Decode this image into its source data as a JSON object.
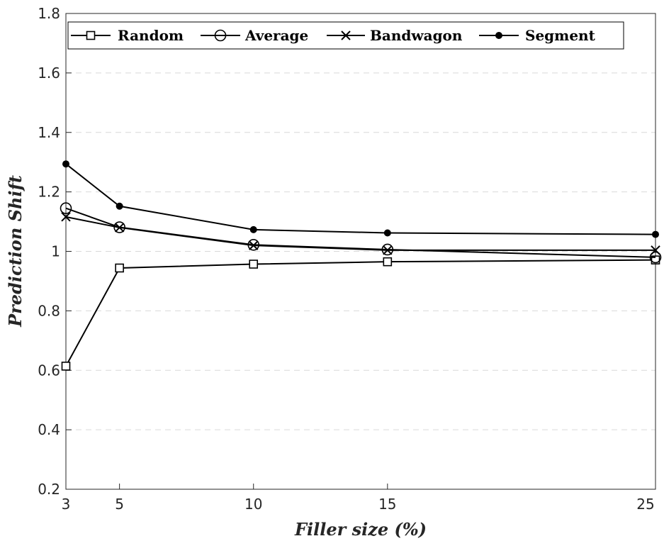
{
  "chart_data": {
    "type": "line",
    "title": "",
    "xlabel": "Filler size (%)",
    "ylabel": "Prediction Shift",
    "x": [
      3,
      5,
      10,
      15,
      25
    ],
    "xticks": [
      "3",
      "5",
      "10",
      "15",
      "25"
    ],
    "yticks": [
      "0.2",
      "0.4",
      "0.6",
      "0.8",
      "1",
      "1.2",
      "1.4",
      "1.6",
      "1.8"
    ],
    "xlim": [
      3,
      25
    ],
    "ylim": [
      0.2,
      1.8
    ],
    "grid": "horizontal dashed",
    "legend_position": "top-left",
    "line_color": "#000000",
    "series": [
      {
        "name": "Random",
        "marker": "square",
        "values": [
          0.614,
          0.944,
          0.957,
          0.965,
          0.971
        ]
      },
      {
        "name": "Average",
        "marker": "circle",
        "values": [
          1.145,
          1.081,
          1.022,
          1.006,
          0.98
        ]
      },
      {
        "name": "Bandwagon",
        "marker": "x",
        "values": [
          1.116,
          1.08,
          1.02,
          1.004,
          1.004
        ]
      },
      {
        "name": "Segment",
        "marker": "dot",
        "values": [
          1.294,
          1.152,
          1.073,
          1.062,
          1.057
        ]
      }
    ]
  }
}
